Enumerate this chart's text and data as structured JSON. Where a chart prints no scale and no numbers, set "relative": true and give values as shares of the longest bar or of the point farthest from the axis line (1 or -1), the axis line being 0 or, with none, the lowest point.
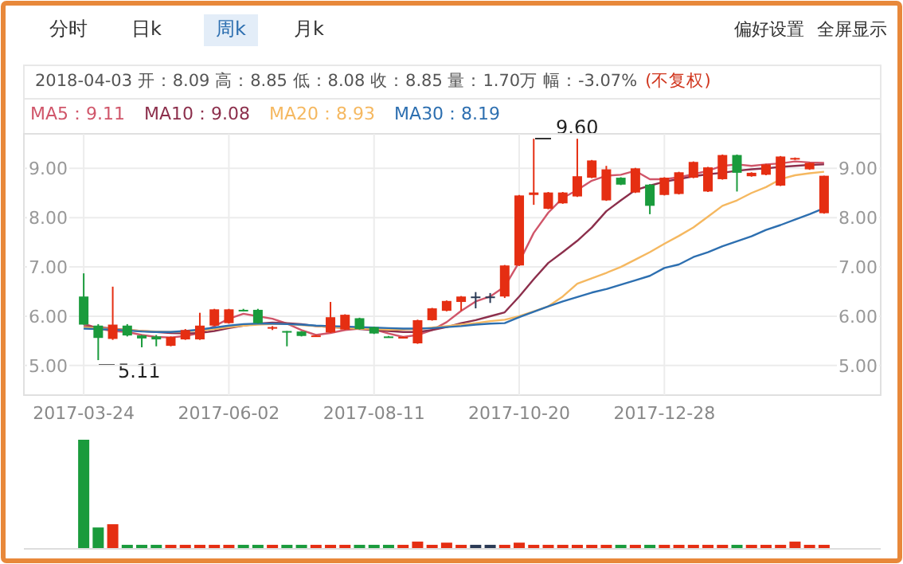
{
  "chart_data": [
    {
      "type": "candlestick",
      "annotations": [
        "分时",
        "日k",
        "周k",
        "月k",
        "偏好设置",
        "全屏显示",
        "2018-04-03 开：8.09 高：8.85 低：8.08 收：8.85 量：1.70万 幅：-3.07%",
        "(不复权)",
        "5.11",
        "9.60"
      ],
      "categories": [
        "2017-03-24",
        null,
        null,
        null,
        null,
        null,
        null,
        null,
        null,
        null,
        "2017-06-02",
        null,
        null,
        null,
        null,
        null,
        null,
        null,
        null,
        null,
        "2017-08-11",
        null,
        null,
        null,
        null,
        null,
        null,
        null,
        null,
        null,
        "2017-10-20",
        null,
        null,
        null,
        null,
        null,
        null,
        null,
        null,
        null,
        "2017-12-28",
        null,
        null,
        null,
        null,
        null,
        null,
        null,
        null,
        null,
        null,
        null
      ],
      "ohlc": [
        [
          6.4,
          6.87,
          5.83,
          5.83
        ],
        [
          5.81,
          5.84,
          5.11,
          5.56
        ],
        [
          5.54,
          6.6,
          5.52,
          5.83
        ],
        [
          5.81,
          5.84,
          5.59,
          5.61
        ],
        [
          5.61,
          5.62,
          5.37,
          5.55
        ],
        [
          5.59,
          5.62,
          5.39,
          5.53
        ],
        [
          5.4,
          5.59,
          5.39,
          5.58
        ],
        [
          5.53,
          5.74,
          5.52,
          5.72
        ],
        [
          5.53,
          6.07,
          5.52,
          5.81
        ],
        [
          5.81,
          6.15,
          5.8,
          6.14
        ],
        [
          5.86,
          6.15,
          5.85,
          6.14
        ],
        [
          6.13,
          6.15,
          6.1,
          6.11
        ],
        [
          6.13,
          6.15,
          5.85,
          5.86
        ],
        [
          5.76,
          5.8,
          5.72,
          5.78
        ],
        [
          5.7,
          5.7,
          5.39,
          5.67
        ],
        [
          5.69,
          5.7,
          5.59,
          5.6
        ],
        [
          5.59,
          5.62,
          5.58,
          5.61
        ],
        [
          5.67,
          6.29,
          5.66,
          5.98
        ],
        [
          5.73,
          6.04,
          5.72,
          6.03
        ],
        [
          5.96,
          5.97,
          5.73,
          5.74
        ],
        [
          5.78,
          5.79,
          5.64,
          5.65
        ],
        [
          5.59,
          5.6,
          5.57,
          5.58
        ],
        [
          5.56,
          5.59,
          5.55,
          5.58
        ],
        [
          5.45,
          5.93,
          5.44,
          5.92
        ],
        [
          5.92,
          6.17,
          5.91,
          6.16
        ],
        [
          6.11,
          6.32,
          6.1,
          6.31
        ],
        [
          6.29,
          6.41,
          6.11,
          6.4
        ],
        [
          6.4,
          6.49,
          6.16,
          6.4
        ],
        [
          6.4,
          6.47,
          6.27,
          6.4
        ],
        [
          6.4,
          7.04,
          6.37,
          7.03
        ],
        [
          7.03,
          8.46,
          7.02,
          8.45
        ],
        [
          8.46,
          9.6,
          8.26,
          8.51
        ],
        [
          8.18,
          8.52,
          8.17,
          8.51
        ],
        [
          8.29,
          8.52,
          8.28,
          8.51
        ],
        [
          8.43,
          9.6,
          8.42,
          8.84
        ],
        [
          8.81,
          9.17,
          8.8,
          9.16
        ],
        [
          8.35,
          9.05,
          8.34,
          8.98
        ],
        [
          8.81,
          8.82,
          8.66,
          8.67
        ],
        [
          8.51,
          9.01,
          8.5,
          9.0
        ],
        [
          8.67,
          8.68,
          8.07,
          8.24
        ],
        [
          8.46,
          8.82,
          8.45,
          8.81
        ],
        [
          8.48,
          8.93,
          8.47,
          8.92
        ],
        [
          8.81,
          9.14,
          8.8,
          9.13
        ],
        [
          8.53,
          9.03,
          8.52,
          9.02
        ],
        [
          8.78,
          9.28,
          8.77,
          9.27
        ],
        [
          9.27,
          9.28,
          8.53,
          8.91
        ],
        [
          8.84,
          8.92,
          8.83,
          8.91
        ],
        [
          8.87,
          9.09,
          8.86,
          9.08
        ],
        [
          8.65,
          9.25,
          8.64,
          9.24
        ],
        [
          9.18,
          9.22,
          9.17,
          9.21
        ],
        [
          8.98,
          9.12,
          8.97,
          9.11
        ],
        [
          8.09,
          8.85,
          8.08,
          8.85
        ]
      ],
      "colors": [
        "#1a9b3c",
        "#1a9b3c",
        "#e52e12",
        "#1a9b3c",
        "#1a9b3c",
        "#1a9b3c",
        "#e52e12",
        "#e52e12",
        "#e52e12",
        "#e52e12",
        "#e52e12",
        "#1a9b3c",
        "#1a9b3c",
        "#e52e12",
        "#1a9b3c",
        "#1a9b3c",
        "#e52e12",
        "#e52e12",
        "#e52e12",
        "#1a9b3c",
        "#1a9b3c",
        "#1a9b3c",
        "#e52e12",
        "#e52e12",
        "#e52e12",
        "#e52e12",
        "#e52e12",
        "#2b3a55",
        "#2b3a55",
        "#e52e12",
        "#e52e12",
        "#e52e12",
        "#e52e12",
        "#e52e12",
        "#e52e12",
        "#e52e12",
        "#e52e12",
        "#1a9b3c",
        "#e52e12",
        "#1a9b3c",
        "#e52e12",
        "#e52e12",
        "#e52e12",
        "#e52e12",
        "#e52e12",
        "#1a9b3c",
        "#e52e12",
        "#e52e12",
        "#e52e12",
        "#e52e12",
        "#e52e12",
        "#e52e12"
      ],
      "series": [
        {
          "name": "MA5：9.11",
          "type": "line",
          "color": "#d0566a",
          "values": [
            5.85,
            5.75,
            5.7,
            5.68,
            5.62,
            5.58,
            5.57,
            5.6,
            5.66,
            5.8,
            5.95,
            6.05,
            6.0,
            5.95,
            5.85,
            5.72,
            5.62,
            5.66,
            5.72,
            5.75,
            5.73,
            5.65,
            5.58,
            5.62,
            5.72,
            5.88,
            6.11,
            6.3,
            6.4,
            6.6,
            7.1,
            7.69,
            8.1,
            8.4,
            8.56,
            8.75,
            8.85,
            8.87,
            8.95,
            8.78,
            8.78,
            8.82,
            8.88,
            8.95,
            9.05,
            9.08,
            9.05,
            9.08,
            9.1,
            9.14,
            9.12,
            9.11
          ]
        },
        {
          "name": "MA10：9.08",
          "type": "line",
          "color": "#8c2f4c",
          "values": [
            5.8,
            5.78,
            5.75,
            5.72,
            5.7,
            5.68,
            5.66,
            5.65,
            5.66,
            5.7,
            5.76,
            5.81,
            5.85,
            5.87,
            5.86,
            5.84,
            5.8,
            5.78,
            5.76,
            5.74,
            5.72,
            5.7,
            5.68,
            5.68,
            5.72,
            5.78,
            5.86,
            5.92,
            6.0,
            6.08,
            6.4,
            6.75,
            7.08,
            7.3,
            7.53,
            7.8,
            8.13,
            8.35,
            8.56,
            8.65,
            8.73,
            8.78,
            8.84,
            8.88,
            8.91,
            8.95,
            8.98,
            9.0,
            9.03,
            9.05,
            9.07,
            9.08
          ]
        },
        {
          "name": "MA20：8.93",
          "type": "line",
          "color": "#f5b860",
          "values": [
            5.78,
            5.76,
            5.74,
            5.72,
            5.7,
            5.69,
            5.68,
            5.69,
            5.71,
            5.74,
            5.78,
            5.81,
            5.83,
            5.84,
            5.84,
            5.82,
            5.8,
            5.78,
            5.76,
            5.75,
            5.74,
            5.73,
            5.73,
            5.74,
            5.77,
            5.8,
            5.83,
            5.86,
            5.9,
            5.93,
            6.0,
            6.1,
            6.2,
            6.4,
            6.66,
            6.77,
            6.88,
            7.0,
            7.15,
            7.3,
            7.47,
            7.63,
            7.8,
            8.02,
            8.24,
            8.35,
            8.5,
            8.62,
            8.78,
            8.86,
            8.9,
            8.93
          ]
        },
        {
          "name": "MA30：8.19",
          "type": "line",
          "color": "#2d6fb0",
          "values": [
            5.75,
            5.74,
            5.73,
            5.71,
            5.69,
            5.68,
            5.68,
            5.7,
            5.73,
            5.77,
            5.81,
            5.84,
            5.85,
            5.85,
            5.84,
            5.83,
            5.81,
            5.8,
            5.79,
            5.78,
            5.77,
            5.76,
            5.75,
            5.75,
            5.76,
            5.78,
            5.8,
            5.83,
            5.85,
            5.86,
            5.98,
            6.09,
            6.2,
            6.3,
            6.39,
            6.48,
            6.55,
            6.64,
            6.73,
            6.82,
            6.98,
            7.05,
            7.2,
            7.3,
            7.42,
            7.52,
            7.62,
            7.75,
            7.85,
            7.96,
            8.07,
            8.19
          ]
        }
      ],
      "ylim": [
        4.4,
        9.7
      ],
      "yticks": [
        {
          "value": 5,
          "label": "5.00"
        },
        {
          "value": 6,
          "label": "6.00"
        },
        {
          "value": 7,
          "label": "7.00"
        },
        {
          "value": 8,
          "label": "8.00"
        },
        {
          "value": 9,
          "label": "9.00"
        }
      ],
      "y2lim": [
        4.4,
        9.7
      ],
      "y2ticks": [
        {
          "value": 5,
          "label": "5.00"
        },
        {
          "value": 6,
          "label": "6.00"
        },
        {
          "value": 7,
          "label": "7.00"
        },
        {
          "value": 8,
          "label": "8.00"
        },
        {
          "value": 9,
          "label": "9.00"
        }
      ],
      "grid": true,
      "legend": "top left"
    },
    {
      "type": "bar",
      "relative": true,
      "categories": [
        null,
        null,
        null,
        null,
        null,
        null,
        null,
        null,
        null,
        null,
        null,
        null,
        null,
        null,
        null,
        null,
        null,
        null,
        null,
        null,
        null,
        null,
        null,
        null,
        null,
        null,
        null,
        null,
        null,
        null,
        null,
        null,
        null,
        null,
        null,
        null,
        null,
        null,
        null,
        null,
        null,
        null,
        null,
        null,
        null,
        null,
        null,
        null,
        null,
        null,
        null,
        null
      ],
      "values": [
        1,
        0.19,
        0.22,
        0.03,
        0.03,
        0.03,
        0.03,
        0.03,
        0.03,
        0.03,
        0.03,
        0.03,
        0.03,
        0.03,
        0.03,
        0.03,
        0.03,
        0.03,
        0.03,
        0.03,
        0.03,
        0.03,
        0.03,
        0.06,
        0.03,
        0.05,
        0.03,
        0.03,
        0.03,
        0.03,
        0.05,
        0.03,
        0.03,
        0.03,
        0.03,
        0.03,
        0.03,
        0.03,
        0.03,
        0.03,
        0.03,
        0.03,
        0.03,
        0.03,
        0.03,
        0.03,
        0.03,
        0.03,
        0.03,
        0.06,
        0.03,
        0.03
      ],
      "colors": [
        "#1a9b3c",
        "#1a9b3c",
        "#e52e12",
        "#1a9b3c",
        "#1a9b3c",
        "#1a9b3c",
        "#e52e12",
        "#e52e12",
        "#e52e12",
        "#e52e12",
        "#e52e12",
        "#1a9b3c",
        "#1a9b3c",
        "#e52e12",
        "#1a9b3c",
        "#1a9b3c",
        "#e52e12",
        "#e52e12",
        "#e52e12",
        "#1a9b3c",
        "#1a9b3c",
        "#1a9b3c",
        "#e52e12",
        "#e52e12",
        "#e52e12",
        "#e52e12",
        "#e52e12",
        "#2b3a55",
        "#2b3a55",
        "#e52e12",
        "#e52e12",
        "#e52e12",
        "#e52e12",
        "#e52e12",
        "#e52e12",
        "#e52e12",
        "#e52e12",
        "#1a9b3c",
        "#e52e12",
        "#1a9b3c",
        "#e52e12",
        "#e52e12",
        "#e52e12",
        "#e52e12",
        "#e52e12",
        "#1a9b3c",
        "#e52e12",
        "#e52e12",
        "#e52e12",
        "#e52e12",
        "#e52e12",
        "#e52e12"
      ]
    }
  ]
}
